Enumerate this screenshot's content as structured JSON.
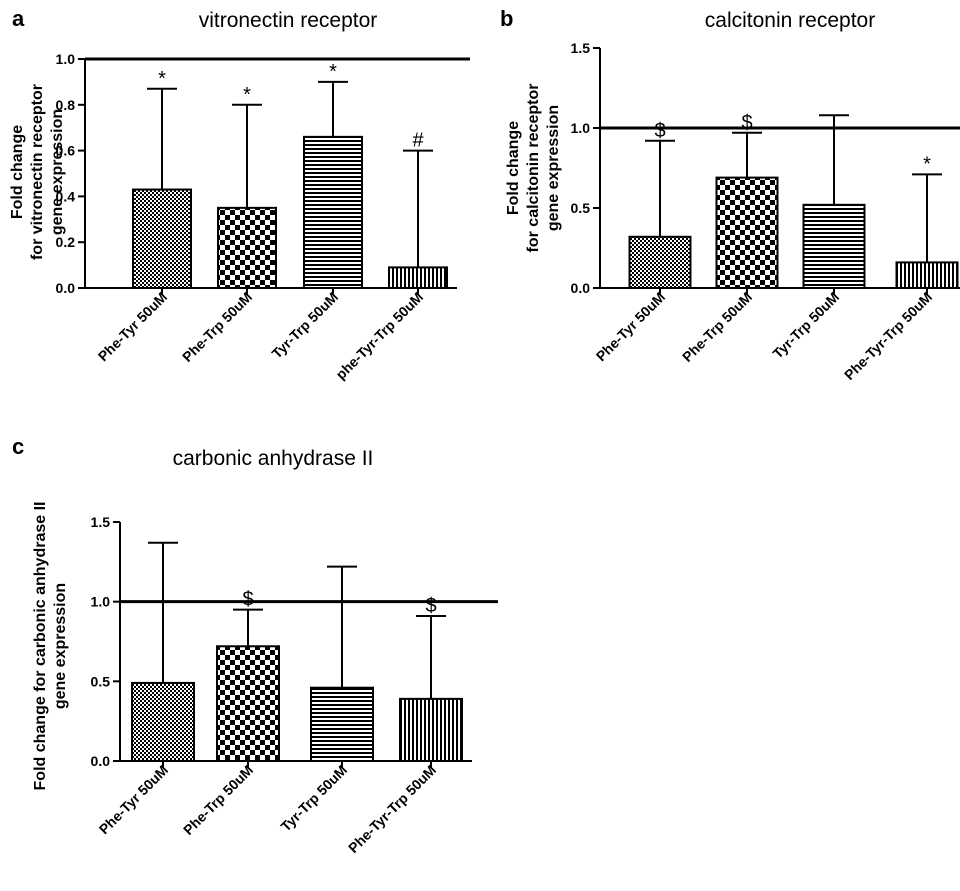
{
  "chart_data": [
    {
      "panel": "a",
      "type": "bar",
      "title": "vitronectin receptor",
      "ylabel_lines": [
        "Fold change",
        "for vitronectin receptor",
        "gene expression"
      ],
      "ylim": [
        0,
        1.0
      ],
      "yticks": [
        "0.0",
        "0.2",
        "0.4",
        "0.6",
        "0.8",
        "1.0"
      ],
      "reference_line": 1.0,
      "categories": [
        "Phe-Tyr 50uM",
        "Phe-Trp 50uM",
        "Tyr-Trp 50uM",
        "phe-Tyr-Trp 50uM"
      ],
      "values": [
        0.43,
        0.35,
        0.66,
        0.09
      ],
      "error_upper": [
        0.87,
        0.8,
        0.9,
        0.6
      ],
      "annotations": [
        "*",
        "*",
        "*",
        "#"
      ],
      "patterns": [
        "dots",
        "checker",
        "hlines",
        "vlines"
      ]
    },
    {
      "panel": "b",
      "type": "bar",
      "title": "calcitonin receptor",
      "ylabel_lines": [
        "Fold change",
        "for calcitonin receptor",
        "gene expression"
      ],
      "ylim": [
        0,
        1.5
      ],
      "yticks": [
        "0.0",
        "0.5",
        "1.0",
        "1.5"
      ],
      "reference_line": 1.0,
      "categories": [
        "Phe-Tyr 50uM",
        "Phe-Trp 50uM",
        "Tyr-Trp 50uM",
        "Phe-Tyr-Trp 50uM"
      ],
      "values": [
        0.32,
        0.69,
        0.52,
        0.16
      ],
      "error_upper": [
        0.92,
        0.97,
        1.08,
        0.71
      ],
      "annotations": [
        "$",
        "$",
        "",
        "*"
      ],
      "patterns": [
        "dots",
        "checker",
        "hlines",
        "vlines"
      ]
    },
    {
      "panel": "c",
      "type": "bar",
      "title": "carbonic anhydrase II",
      "ylabel_lines": [
        "Fold change for carbonic anhydrase II",
        "gene expression"
      ],
      "ylim": [
        0,
        1.5
      ],
      "yticks": [
        "0.0",
        "0.5",
        "1.0",
        "1.5"
      ],
      "reference_line": 1.0,
      "categories": [
        "Phe-Tyr 50uM",
        "Phe-Trp 50uM",
        "Tyr-Trp 50uM",
        "Phe-Tyr-Trp 50uM"
      ],
      "values": [
        0.49,
        0.72,
        0.46,
        0.39
      ],
      "error_upper": [
        1.37,
        0.95,
        1.22,
        0.91
      ],
      "annotations": [
        "",
        "$",
        "",
        "$"
      ],
      "patterns": [
        "dots",
        "checker",
        "hlines",
        "vlines"
      ]
    }
  ]
}
